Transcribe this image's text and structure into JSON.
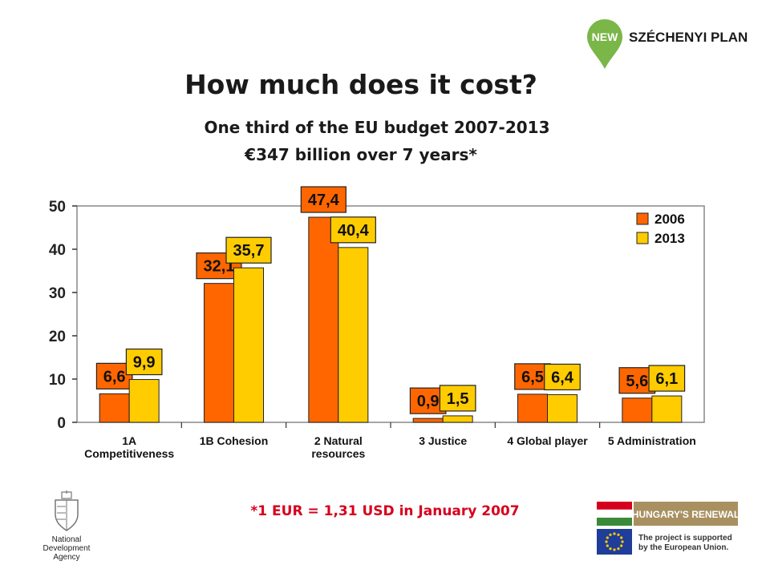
{
  "header": {
    "title": "How much does it cost?",
    "subtitle_line1": "One third of the EU budget 2007-2013",
    "subtitle_line2": "€347 billion over 7 years*"
  },
  "footnote": "*1 EUR = 1,31 USD in January 2007",
  "logos": {
    "nsp_new": "NEW",
    "nsp_name": "SZÉCHENYI PLAN",
    "nda_line1": "National",
    "nda_line2": "Development Agency",
    "hungary_renewal": "HUNGARY'S RENEWAL",
    "eu_support_line1": "The project is supported",
    "eu_support_line2": "by the European Union."
  },
  "colors": {
    "series_2006": "#ff6600",
    "series_2013": "#ffcc00",
    "accent_red": "#d6001c",
    "brand_green": "#7ab648"
  },
  "chart_data": {
    "type": "bar",
    "categories": [
      "1A Competitiveness",
      "1B Cohesion",
      "2 Natural resources",
      "3 Justice",
      "4 Global player",
      "5 Administration"
    ],
    "category_lines": [
      [
        "1A",
        "Competitiveness"
      ],
      [
        "1B Cohesion"
      ],
      [
        "2 Natural",
        "resources"
      ],
      [
        "3 Justice"
      ],
      [
        "4 Global player"
      ],
      [
        "5 Administration"
      ]
    ],
    "series": [
      {
        "name": "2006",
        "values": [
          6.6,
          32.1,
          47.4,
          0.9,
          6.5,
          5.6
        ],
        "labels": [
          "6,6",
          "32,1",
          "47,4",
          "0,9",
          "6,5",
          "5,6"
        ]
      },
      {
        "name": "2013",
        "values": [
          9.9,
          35.7,
          40.4,
          1.5,
          6.4,
          6.1
        ],
        "labels": [
          "9,9",
          "35,7",
          "40,4",
          "1,5",
          "6,4",
          "6,1"
        ]
      }
    ],
    "ylim": [
      0,
      50
    ],
    "yticks": [
      0,
      10,
      20,
      30,
      40,
      50
    ],
    "legend_position": "top-right",
    "grid": false
  }
}
